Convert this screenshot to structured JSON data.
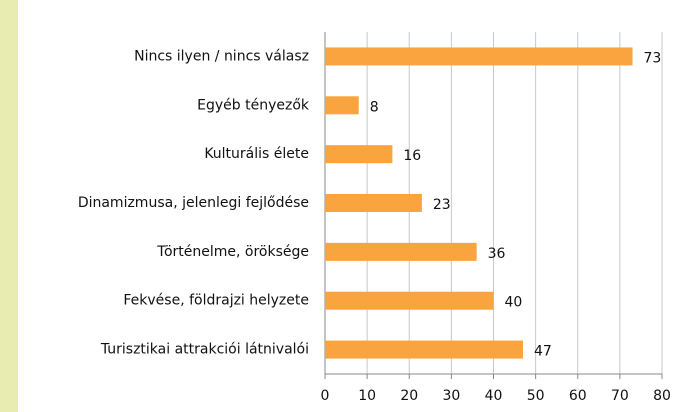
{
  "chart_data": {
    "type": "bar",
    "orientation": "horizontal",
    "categories": [
      "Nincs ilyen / nincs válasz",
      "Egyéb tényezők",
      "Kulturális élete",
      "Dinamizmusa, jelenlegi fejlődése",
      "Történelme, öröksége",
      "Fekvése, földrajzi helyzete",
      "Turisztikai attrakciói látnivalói"
    ],
    "values": [
      73,
      8,
      16,
      23,
      36,
      40,
      47
    ],
    "color": "#f9a43e",
    "xlim": [
      0,
      80
    ],
    "xticks": [
      0,
      10,
      20,
      30,
      40,
      50,
      60,
      70,
      80
    ],
    "grid": true
  }
}
